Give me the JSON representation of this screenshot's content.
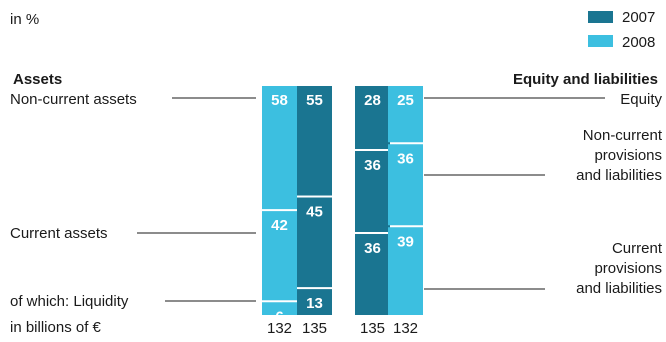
{
  "unit_note": "in %",
  "legend": [
    {
      "label": "2007",
      "color": "#1a7591"
    },
    {
      "label": "2008",
      "color": "#3cbfe0"
    }
  ],
  "assets_heading": "Assets",
  "liabilities_heading": "Equity and liabilities",
  "left_labels": [
    "Non-current assets",
    "Current assets",
    "of which: Liquidity"
  ],
  "right_labels": [
    "Equity",
    "Non-current provisions and liabilities",
    "Current provisions and liabilities"
  ],
  "right_labels_lines": [
    [
      "Equity"
    ],
    [
      "Non-current",
      "provisions",
      "and liabilities"
    ],
    [
      "Current",
      "provisions",
      "and liabilities"
    ]
  ],
  "footer_label": "in billions of €",
  "chart_data": {
    "type": "bar",
    "stacked": true,
    "unit": "%",
    "groups": [
      {
        "side": "Assets",
        "categories": [
          "Non-current assets",
          "Current assets",
          "of which: Liquidity"
        ],
        "series": [
          {
            "name": "2008",
            "values": [
              58,
              42,
              6
            ],
            "total": 132
          },
          {
            "name": "2007",
            "values": [
              55,
              45,
              13
            ],
            "total": 135
          }
        ]
      },
      {
        "side": "Equity and liabilities",
        "categories": [
          "Equity",
          "Non-current provisions and liabilities",
          "Current provisions and liabilities"
        ],
        "series": [
          {
            "name": "2007",
            "values": [
              28,
              36,
              36
            ],
            "total": 135
          },
          {
            "name": "2008",
            "values": [
              25,
              36,
              39
            ],
            "total": 132
          }
        ]
      }
    ],
    "totals_unit": "in billions of €"
  }
}
